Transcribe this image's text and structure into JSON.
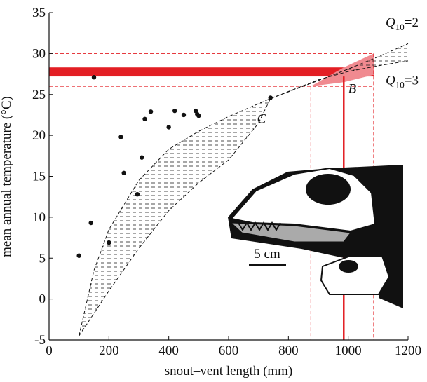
{
  "chart_data": {
    "type": "scatter",
    "xlabel": "snout–vent length (mm)",
    "ylabel": "mean annual temperature (°C)",
    "xlim": [
      0,
      1200
    ],
    "xticks": [
      0,
      200,
      400,
      600,
      800,
      1000,
      1200
    ],
    "ylim": [
      -5,
      35
    ],
    "yticks": [
      -5,
      0,
      5,
      10,
      15,
      20,
      25,
      30,
      35
    ],
    "x": [
      100,
      140,
      150,
      200,
      240,
      250,
      295,
      310,
      320,
      340,
      400,
      420,
      450,
      490,
      495,
      500,
      740
    ],
    "values": [
      5.3,
      9.3,
      27.1,
      6.9,
      19.8,
      15.4,
      12.8,
      17.3,
      22,
      22.9,
      21,
      23,
      22.5,
      23,
      22.6,
      22.4,
      24.6
    ],
    "color": "#111111",
    "curves": [
      {
        "x": [
          100,
          150,
          200,
          300,
          400,
          500,
          600,
          740,
          900,
          1000,
          1100,
          1200
        ],
        "values": [
          -4.5,
          3.5,
          8.5,
          14.5,
          18.3,
          20.5,
          22.3,
          24.5,
          26.7,
          28.1,
          29.6,
          31.2
        ]
      },
      {
        "x": [
          100,
          200,
          300,
          400,
          500,
          600,
          700,
          740,
          900,
          1000,
          1100,
          1200
        ],
        "values": [
          -4.5,
          1,
          6.2,
          10.8,
          14.2,
          17,
          21.5,
          24.5,
          26.8,
          27.8,
          28.5,
          29.1
        ]
      }
    ],
    "band": [
      27.2,
      28.3
    ],
    "band_end": 1085,
    "h_dashed": [
      26,
      30
    ],
    "v_dashed": [
      875,
      1085
    ],
    "v_solid": 985,
    "region": {
      "x": [
        875,
        985,
        1085,
        1085,
        985
      ],
      "values": [
        26,
        28.3,
        30,
        27.4,
        26.5
      ]
    },
    "labels": {
      "b": "B",
      "c": "C",
      "scale": "5 cm"
    },
    "q10": [
      {
        "symbol": "Q",
        "sub": "10",
        "rest": "=2"
      },
      {
        "symbol": "Q",
        "sub": "10",
        "rest": "=3"
      }
    ]
  }
}
